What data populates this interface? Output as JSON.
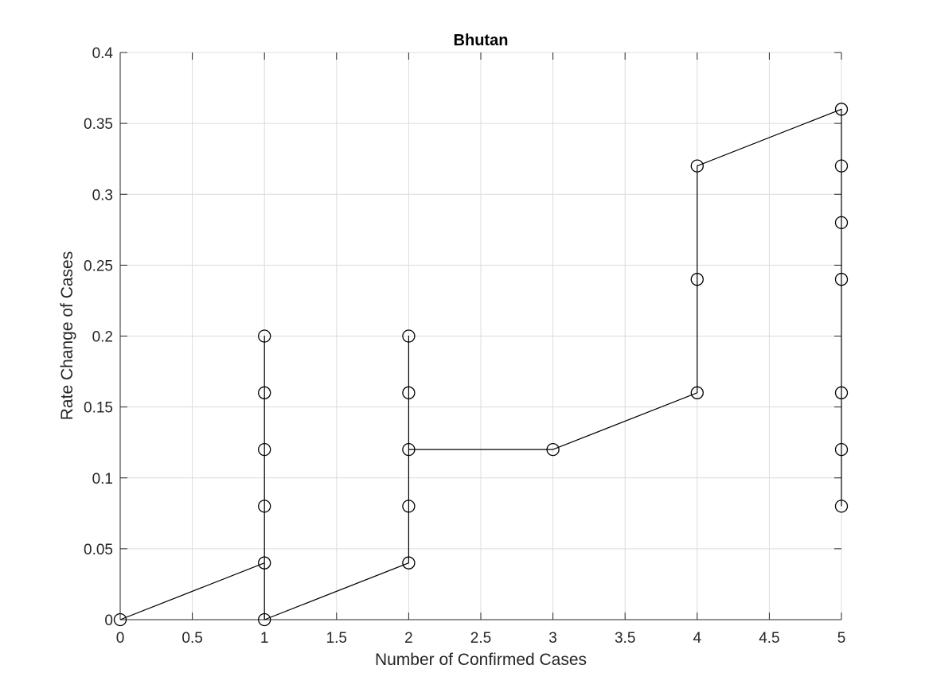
{
  "chart_data": {
    "type": "line",
    "title": "Bhutan",
    "xlabel": "Number of Confirmed Cases",
    "ylabel": "Rate Change of Cases",
    "xlim": [
      0,
      5
    ],
    "ylim": [
      0,
      0.4
    ],
    "xticks": [
      0,
      0.5,
      1,
      1.5,
      2,
      2.5,
      3,
      3.5,
      4,
      4.5,
      5
    ],
    "yticks": [
      0,
      0.05,
      0.1,
      0.15,
      0.2,
      0.25,
      0.3,
      0.35,
      0.4
    ],
    "xtick_labels": [
      "0",
      "0.5",
      "1",
      "1.5",
      "2",
      "2.5",
      "3",
      "3.5",
      "4",
      "4.5",
      "5"
    ],
    "ytick_labels": [
      "0",
      "0.05",
      "0.1",
      "0.15",
      "0.2",
      "0.25",
      "0.3",
      "0.35",
      "0.4"
    ],
    "grid": true,
    "marker": "circle",
    "line_color": "#000000",
    "grid_color": "#dcdcdc",
    "axis_color": "#262626",
    "series": [
      {
        "x": [
          0,
          1,
          1,
          1,
          1,
          1,
          1,
          2,
          2,
          2,
          2,
          2,
          3,
          4,
          4,
          4,
          5,
          5,
          5,
          5,
          5,
          5,
          5
        ],
        "y": [
          0,
          0.04,
          0.2,
          0.16,
          0.12,
          0.08,
          0,
          0.04,
          0.2,
          0.16,
          0.08,
          0.12,
          0.12,
          0.16,
          0.24,
          0.32,
          0.36,
          0.32,
          0.28,
          0.24,
          0.16,
          0.12,
          0.08
        ]
      }
    ]
  }
}
